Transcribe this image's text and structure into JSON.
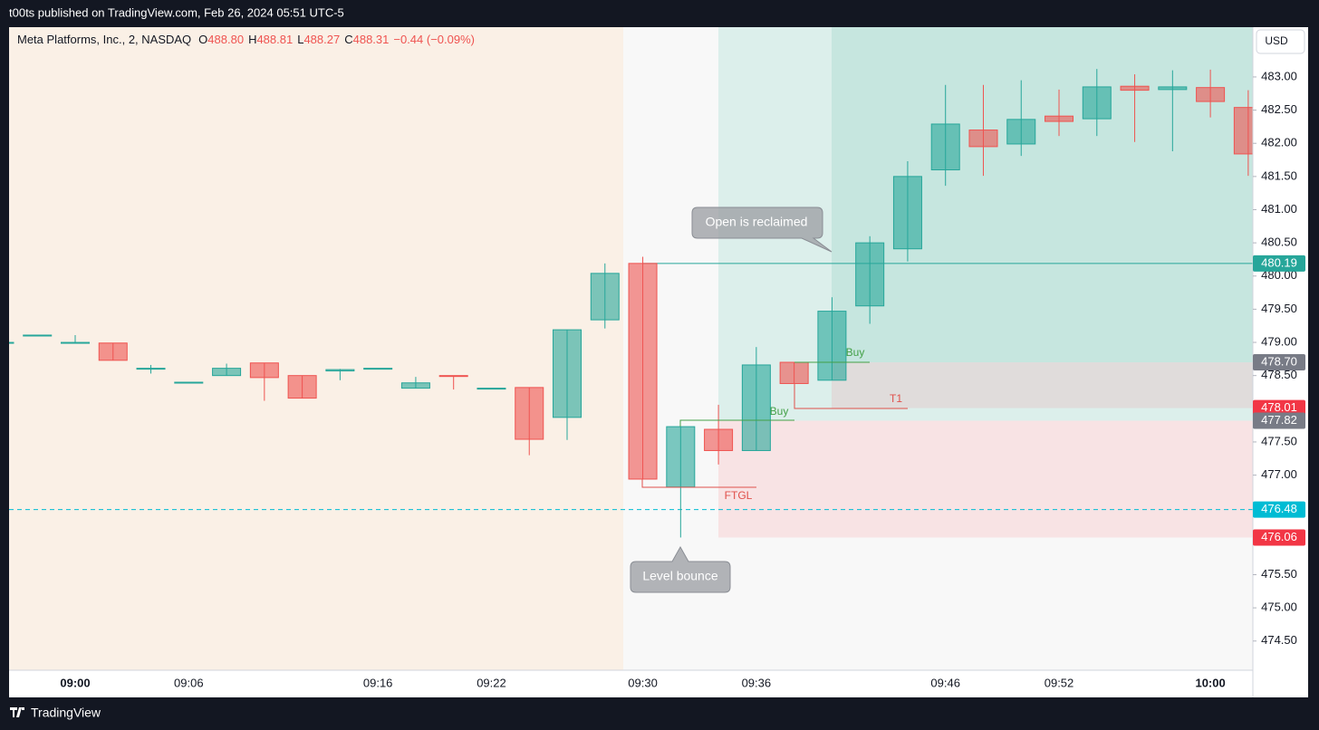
{
  "header": "t00ts published on TradingView.com, Feb 26, 2024 05:51 UTC-5",
  "footer": "TradingView",
  "chart_data": {
    "type": "candlestick",
    "legend": {
      "symbol": "Meta Platforms, Inc., 2, NASDAQ",
      "fields": [
        {
          "label": "O",
          "value": "488.80"
        },
        {
          "label": "H",
          "value": "488.81"
        },
        {
          "label": "L",
          "value": "488.27"
        },
        {
          "label": "C",
          "value": "488.31"
        }
      ],
      "change": "−0.44 (−0.09%)"
    },
    "currency": "USD",
    "categories": [
      null,
      null,
      "09:00",
      null,
      null,
      "09:06",
      null,
      null,
      null,
      null,
      "09:16",
      null,
      null,
      "09:22",
      null,
      null,
      null,
      "09:30",
      null,
      null,
      "09:36",
      null,
      null,
      null,
      null,
      "09:46",
      null,
      null,
      "09:52",
      null,
      null,
      null,
      "10:00",
      null
    ],
    "open": [
      479.0,
      479.11,
      479.0,
      478.99,
      478.61,
      478.4,
      478.5,
      478.69,
      478.5,
      478.57,
      478.61,
      478.31,
      478.5,
      478.31,
      478.32,
      477.87,
      479.34,
      480.19,
      476.82,
      477.69,
      477.37,
      478.7,
      478.43,
      479.55,
      480.41,
      481.6,
      482.2,
      481.99,
      482.41,
      482.37,
      482.86,
      482.81,
      482.84,
      482.54
    ],
    "high": [
      479.0,
      479.11,
      479.11,
      478.99,
      478.66,
      478.4,
      478.68,
      478.69,
      478.5,
      478.6,
      478.61,
      478.48,
      478.5,
      478.31,
      478.32,
      479.19,
      480.19,
      480.29,
      477.73,
      478.06,
      478.93,
      478.7,
      479.68,
      480.6,
      481.73,
      482.88,
      482.88,
      482.95,
      482.81,
      483.12,
      483.04,
      483.1,
      483.11,
      482.8
    ],
    "low": [
      479.0,
      479.11,
      479.0,
      478.73,
      478.53,
      478.4,
      478.5,
      478.12,
      478.16,
      478.43,
      478.61,
      478.31,
      478.29,
      478.31,
      477.3,
      477.53,
      479.21,
      476.94,
      476.06,
      477.16,
      477.37,
      478.38,
      478.43,
      479.28,
      480.22,
      481.36,
      481.51,
      481.81,
      482.11,
      482.11,
      482.02,
      481.88,
      482.39,
      481.51
    ],
    "close": [
      479.0,
      479.11,
      479.0,
      478.73,
      478.61,
      478.4,
      478.61,
      478.47,
      478.16,
      478.59,
      478.61,
      478.39,
      478.49,
      478.31,
      477.54,
      479.19,
      480.04,
      476.94,
      477.73,
      477.37,
      478.66,
      478.38,
      479.47,
      480.5,
      481.5,
      482.29,
      481.95,
      482.36,
      482.33,
      482.85,
      482.8,
      482.85,
      482.63,
      481.84
    ],
    "up_color": "#26a69a",
    "down_color": "#ef5350",
    "ylim": [
      474.06,
      483.75
    ],
    "yticks": [
      {
        "value": 474.5,
        "label": "474.50"
      },
      {
        "value": 475,
        "label": "475.00"
      },
      {
        "value": 475.5,
        "label": "475.50"
      },
      {
        "value": 477,
        "label": "477.00"
      },
      {
        "value": 477.5,
        "label": "477.50"
      },
      {
        "value": 478.5,
        "label": "478.50"
      },
      {
        "value": 479,
        "label": "479.00"
      },
      {
        "value": 479.5,
        "label": "479.50"
      },
      {
        "value": 480,
        "label": "480.00"
      },
      {
        "value": 480.5,
        "label": "480.50"
      },
      {
        "value": 481,
        "label": "481.00"
      },
      {
        "value": 481.5,
        "label": "481.50"
      },
      {
        "value": 482,
        "label": "482.00"
      },
      {
        "value": 482.5,
        "label": "482.50"
      },
      {
        "value": 483,
        "label": "483.00"
      }
    ],
    "price_tags": [
      {
        "value": 480.19,
        "label": "480.19",
        "color": "#26a69a"
      },
      {
        "value": 478.7,
        "label": "478.70",
        "color": "#787b86"
      },
      {
        "value": 478.01,
        "label": "478.01",
        "color": "#f23645"
      },
      {
        "value": 477.82,
        "label": "477.82",
        "color": "#787b86"
      },
      {
        "value": 476.48,
        "label": "476.48",
        "color": "#00bcd4"
      },
      {
        "value": 476.06,
        "label": "476.06",
        "color": "#f23645"
      }
    ],
    "annotations": {
      "open_reclaimed": "Open is reclaimed",
      "level_bounce": "Level bounce",
      "buy_1": "Buy",
      "buy_2": "Buy",
      "t1": "T1",
      "ftgl": "FTGL"
    }
  }
}
